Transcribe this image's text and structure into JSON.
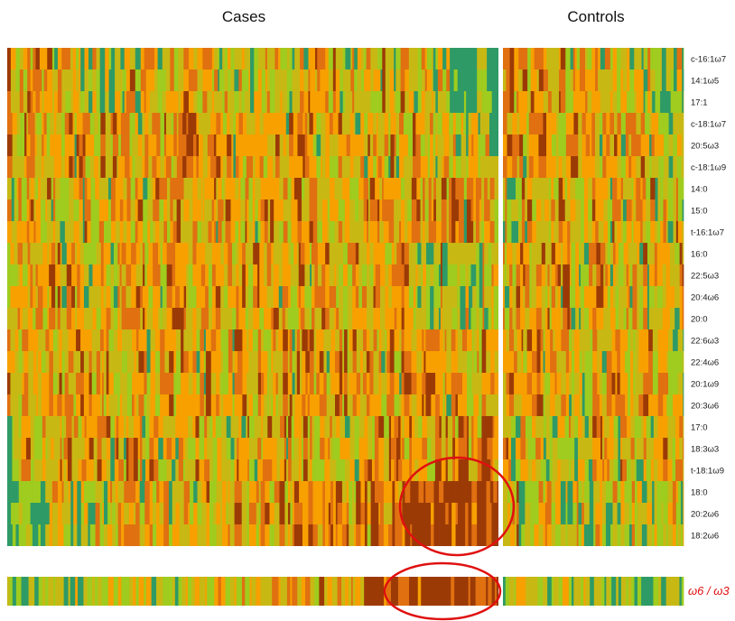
{
  "chart_data": {
    "type": "heatmap",
    "group_titles": [
      "Cases",
      "Controls"
    ],
    "row_labels": [
      "c-16:1ω7",
      "14:1ω5",
      "17:1",
      "c-18:1ω7",
      "20:5ω3",
      "c-18:1ω9",
      "14:0",
      "15:0",
      "t-16:1ω7",
      "16:0",
      "22:5ω3",
      "20:4ω6",
      "20:0",
      "22:6ω3",
      "22:4ω6",
      "20:1ω9",
      "20:3ω6",
      "17:0",
      "18:3ω3",
      "t-18:1ω9",
      "18:0",
      "20:2ω6",
      "18:2ω6"
    ],
    "summary_row_label": "ω6 / ω3",
    "color_scale": [
      "#2e9a66",
      "#9fcc1e",
      "#c8b814",
      "#f7a000",
      "#e07010",
      "#9c3a06"
    ],
    "row_blocks": [
      {
        "rows": [
          0,
          1,
          2
        ],
        "cases": [
          0.62,
          0.5,
          0.32,
          0.38,
          0.55,
          0.4,
          0.42,
          0.55,
          0.5,
          0.45,
          0.22,
          0.08
        ],
        "controls": [
          0.75,
          0.6,
          0.45,
          0.38,
          0.2
        ]
      },
      {
        "rows": [
          3,
          4,
          5
        ],
        "cases": [
          0.62,
          0.6,
          0.58,
          0.55,
          0.55,
          0.58,
          0.52,
          0.52,
          0.5,
          0.48,
          0.45,
          0.42
        ],
        "controls": [
          0.62,
          0.55,
          0.52,
          0.48,
          0.4
        ]
      },
      {
        "rows": [
          6,
          7,
          8
        ],
        "cases": [
          0.42,
          0.45,
          0.48,
          0.5,
          0.52,
          0.52,
          0.55,
          0.58,
          0.6,
          0.6,
          0.62,
          0.6
        ],
        "controls": [
          0.5,
          0.5,
          0.52,
          0.5,
          0.5
        ]
      },
      {
        "rows": [
          9,
          10,
          11,
          12
        ],
        "cases": [
          0.52,
          0.55,
          0.55,
          0.55,
          0.56,
          0.56,
          0.56,
          0.55,
          0.52,
          0.5,
          0.45,
          0.4
        ],
        "controls": [
          0.5,
          0.52,
          0.5,
          0.5,
          0.48
        ]
      },
      {
        "rows": [
          13,
          14,
          15,
          16
        ],
        "cases": [
          0.55,
          0.56,
          0.56,
          0.56,
          0.55,
          0.55,
          0.55,
          0.55,
          0.55,
          0.55,
          0.52,
          0.5
        ],
        "controls": [
          0.52,
          0.5,
          0.48,
          0.5,
          0.5
        ]
      },
      {
        "rows": [
          17,
          18,
          19
        ],
        "cases": [
          0.42,
          0.48,
          0.5,
          0.52,
          0.52,
          0.52,
          0.55,
          0.55,
          0.55,
          0.58,
          0.65,
          0.72
        ],
        "controls": [
          0.5,
          0.48,
          0.45,
          0.45,
          0.45
        ]
      },
      {
        "rows": [
          20,
          21,
          22
        ],
        "cases": [
          0.2,
          0.28,
          0.35,
          0.42,
          0.45,
          0.5,
          0.55,
          0.62,
          0.72,
          0.85,
          0.92,
          0.95
        ],
        "controls": [
          0.48,
          0.42,
          0.42,
          0.4,
          0.38
        ]
      }
    ],
    "summary_row": {
      "cases": [
        0.2,
        0.25,
        0.3,
        0.35,
        0.42,
        0.48,
        0.52,
        0.58,
        0.7,
        0.85,
        0.92,
        0.95
      ],
      "controls": [
        0.35,
        0.3,
        0.3,
        0.28,
        0.25
      ]
    },
    "highlights": [
      {
        "target": "rows 18:0, 20:2ω6, 18:2ω6 — rightmost Cases columns",
        "color": "#e01010"
      },
      {
        "target": "ω6 / ω3 summary row — rightmost Cases columns",
        "color": "#e01010"
      }
    ],
    "separator_color": "#ffffff",
    "ratio_label_color": "#e01010"
  }
}
